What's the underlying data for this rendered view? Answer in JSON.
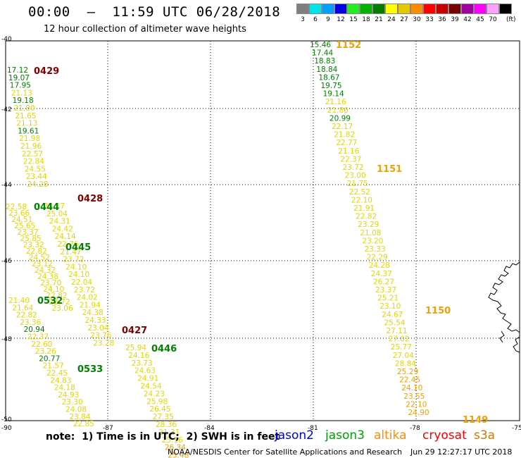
{
  "header": {
    "title": "00:00  –  11:59 UTC 06/28/2018",
    "subtitle": "12 hour collection of altimeter wave heights"
  },
  "legend": {
    "unit": "(ft)",
    "items": [
      {
        "label": "3",
        "color": "#7f7f7f"
      },
      {
        "label": "6",
        "color": "#00e5e5"
      },
      {
        "label": "9",
        "color": "#00a0ff"
      },
      {
        "label": "12",
        "color": "#0000e0"
      },
      {
        "label": "15",
        "color": "#22ee22"
      },
      {
        "label": "18",
        "color": "#00b400"
      },
      {
        "label": "21",
        "color": "#007c00"
      },
      {
        "label": "24",
        "color": "#ffff00"
      },
      {
        "label": "27",
        "color": "#e5c800"
      },
      {
        "label": "30",
        "color": "#ff8c00"
      },
      {
        "label": "33",
        "color": "#ff0000"
      },
      {
        "label": "36",
        "color": "#c80000"
      },
      {
        "label": "39",
        "color": "#7a0000"
      },
      {
        "label": "42",
        "color": "#a000a0"
      },
      {
        "label": "45",
        "color": "#ff00ff"
      },
      {
        "label": "70",
        "color": "#ffa0ff"
      },
      {
        "label": "",
        "color": "#000000"
      }
    ]
  },
  "axes": {
    "lat_labels": [
      "-40",
      "-42",
      "-44",
      "-46",
      "-48",
      "-50"
    ],
    "lon_labels": [
      "-90",
      "-87",
      "-84",
      "-81",
      "-78",
      "-75"
    ]
  },
  "note": "note:  1) Time is in UTC;  2) SWH is in feet",
  "satellites": [
    {
      "name": "jason2",
      "color": "#0000e0"
    },
    {
      "name": "jason3",
      "color": "#00a000"
    },
    {
      "name": "altika",
      "color": "#ff8c00"
    },
    {
      "name": "cryosat",
      "color": "#ff0000"
    },
    {
      "name": "s3a",
      "color": "#cc7a00"
    }
  ],
  "credit": "NOAA/NESDIS Center for Satellite Applications and Research",
  "timestamp": "Jun 29 12:27:17 UTC 2018",
  "colors": {
    "g": "#008000",
    "y": "#e5d500",
    "o": "#f0a000",
    "r": "#800000"
  },
  "pass_labels": [
    {
      "text": "0429",
      "color": "#800000"
    },
    {
      "text": "0428",
      "color": "#800000"
    },
    {
      "text": "0444",
      "color": "#008000"
    },
    {
      "text": "0445",
      "color": "#008000"
    },
    {
      "text": "0532",
      "color": "#008000"
    },
    {
      "text": "0427",
      "color": "#800000"
    },
    {
      "text": "0446",
      "color": "#008000"
    },
    {
      "text": "0533",
      "color": "#008000"
    },
    {
      "text": "1152",
      "color": "#f0a000"
    },
    {
      "text": "1151",
      "color": "#f0a000"
    },
    {
      "text": "1150",
      "color": "#f0a000"
    },
    {
      "text": "1149",
      "color": "#f0a000"
    }
  ],
  "tracks": [
    {
      "name": "track-0429",
      "c": [
        "g",
        "g",
        "g",
        "y",
        "g",
        "y",
        "y",
        "y",
        "g",
        "y",
        "y",
        "y",
        "y",
        "y",
        "y",
        "y"
      ],
      "v": [
        "17.12",
        "19.07",
        "17.95",
        "21.13",
        "19.18",
        "21.80",
        "21.65",
        "21.13",
        "19.61",
        "21.98",
        "21.96",
        "22.57",
        "22.84",
        "24.55",
        "23.44",
        "24.28"
      ]
    },
    {
      "name": "track-0444",
      "c": [
        "y",
        "y",
        "y",
        "y",
        "y",
        "y",
        "y",
        "y",
        "y",
        "y",
        "y",
        "y",
        "y",
        "y",
        "y",
        "y",
        "y"
      ],
      "v": [
        "22.58",
        "23.66",
        "24.51",
        "25.65",
        "23.37",
        "25.85",
        "23.32",
        "22.82",
        "24.52",
        "23.12",
        "24.32",
        "24.38",
        "23.70",
        "24.10",
        "22.82",
        "22.72",
        "23.06"
      ]
    },
    {
      "name": "track-0428",
      "c": [
        "y",
        "y",
        "y",
        "y",
        "y",
        "y",
        "y",
        "y",
        "y",
        "y",
        "y",
        "y",
        "y",
        "y",
        "y",
        "y",
        "y",
        "y",
        "y"
      ],
      "v": [
        "24.37",
        "25.04",
        "24.31",
        "24.42",
        "24.14",
        "22.76",
        "21.47",
        "23.72",
        "24.10",
        "24.10",
        "22.04",
        "23.72",
        "24.02",
        "21.94",
        "24.38",
        "24.33",
        "23.04",
        "23.76",
        "23.28"
      ]
    },
    {
      "name": "track-0532",
      "c": [
        "y",
        "y",
        "y",
        "y",
        "g",
        "y",
        "y",
        "y",
        "g",
        "y",
        "y",
        "y",
        "y",
        "y",
        "y",
        "y",
        "y",
        "y"
      ],
      "v": [
        "21.40",
        "21.64",
        "22.82",
        "23.36",
        "20.94",
        "22.37",
        "22.60",
        "23.26",
        "20.77",
        "21.57",
        "22.45",
        "24.83",
        "24.18",
        "24.93",
        "23.30",
        "24.08",
        "23.84",
        "22.85"
      ]
    },
    {
      "name": "track-0427",
      "c": [
        "y",
        "y",
        "y",
        "y",
        "y",
        "y",
        "y",
        "y",
        "y",
        "y",
        "y",
        "y",
        "y",
        "o",
        "o",
        "o",
        "o"
      ],
      "v": [
        "25.94",
        "24.16",
        "23.73",
        "24.63",
        "24.91",
        "24.54",
        "24.23",
        "25.98",
        "26.45",
        "27.35",
        "28.36",
        "21.31",
        "25.16",
        "26.34",
        "25.48",
        "25.65",
        "24.29"
      ]
    },
    {
      "name": "track-115x",
      "c": [
        "g",
        "g",
        "g",
        "g",
        "g",
        "g",
        "g",
        "y",
        "y",
        "g",
        "y",
        "y",
        "y",
        "y",
        "y",
        "y",
        "y",
        "y",
        "y",
        "y",
        "y",
        "y",
        "y",
        "y",
        "y",
        "y",
        "y",
        "y",
        "y",
        "y",
        "y",
        "y",
        "y",
        "y",
        "y",
        "y",
        "y",
        "y",
        "y",
        "y",
        "o",
        "o",
        "o",
        "o",
        "o",
        "o"
      ],
      "v": [
        "15.46",
        "17.44",
        "18.83",
        "18.84",
        "18.67",
        "19.75",
        "19.14",
        "21.16",
        "21.86",
        "20.99",
        "22.17",
        "21.82",
        "22.77",
        "21.16",
        "22.37",
        "23.72",
        "23.00",
        "21.75",
        "22.52",
        "22.10",
        "21.91",
        "22.82",
        "23.29",
        "21.08",
        "23.20",
        "23.33",
        "22.29",
        "24.28",
        "24.37",
        "26.27",
        "23.37",
        "25.21",
        "23.10",
        "24.67",
        "25.54",
        "27.11",
        "27.02",
        "25.77",
        "27.04",
        "28.84",
        "25.29",
        "22.45",
        "24.10",
        "23.55",
        "22.10",
        "24.90"
      ]
    }
  ]
}
